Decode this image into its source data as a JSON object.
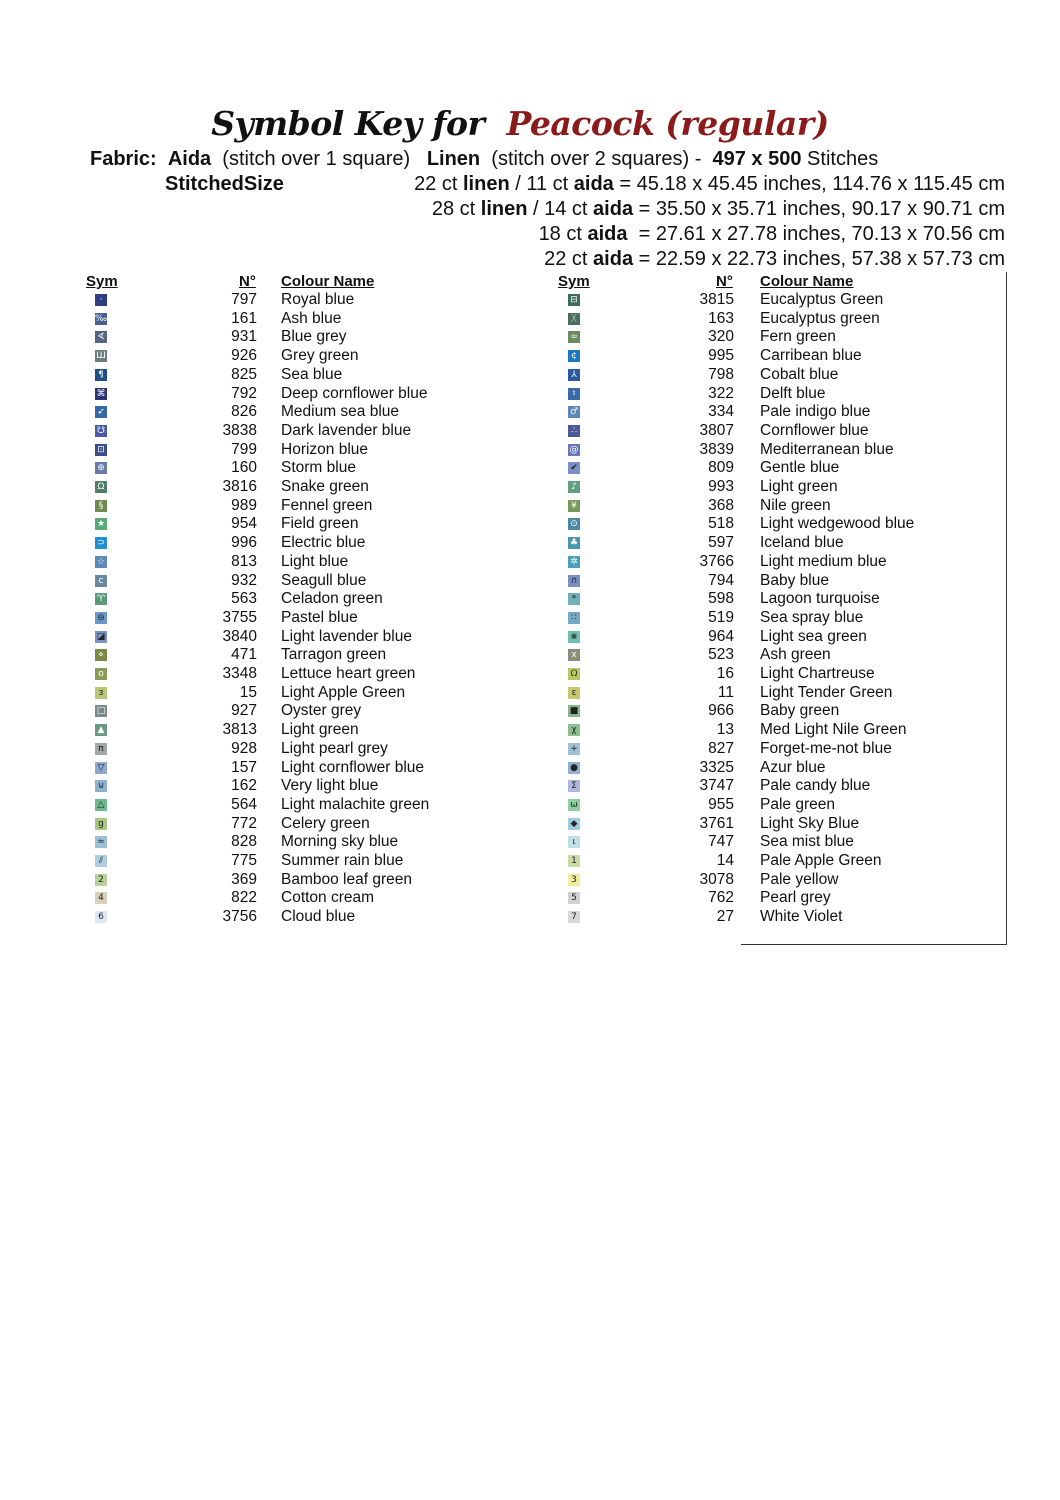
{
  "title": {
    "prefix": "Symbol Key for",
    "name": "Peacock (regular)"
  },
  "fabric": {
    "label": "Fabric:",
    "aida": "Aida",
    "aida_note": "(stitch over 1 square)",
    "linen": "Linen",
    "linen_note": "(stitch over 2 squares) -",
    "w": "497",
    "x": "x",
    "h": "500",
    "unit": "Stitches"
  },
  "stitched": {
    "label": "StitchedSize",
    "lines": [
      {
        "a": "22 ct ",
        "b": "linen",
        "c": " / 11 ct ",
        "d": "aida",
        "e": " = 45.18 x 45.45 inches, 114.76 x 115.45 cm"
      },
      {
        "a": "28 ct ",
        "b": "linen",
        "c": " / 14 ct ",
        "d": "aida",
        "e": " = 35.50 x 35.71 inches, 90.17 x 90.71 cm"
      },
      {
        "a": "",
        "b": "",
        "c": "18 ct ",
        "d": "aida",
        "e": "  = 27.61 x 27.78 inches, 70.13 x 70.56 cm"
      },
      {
        "a": "",
        "b": "",
        "c": "22 ct ",
        "d": "aida",
        "e": " = 22.59 x 22.73 inches, 57.38 x 57.73 cm"
      }
    ]
  },
  "headers": {
    "sym": "Sym",
    "num": "N°",
    "name": "Colour Name"
  },
  "columns": [
    [
      [
        "·",
        "797",
        "Royal blue",
        "#2e3f7f"
      ],
      [
        "‰",
        "161",
        "Ash blue",
        "#4a5e8e"
      ],
      [
        "∢",
        "931",
        "Blue grey",
        "#55667e"
      ],
      [
        "Ш",
        "926",
        "Grey green",
        "#6b7f7a"
      ],
      [
        "¶",
        "825",
        "Sea blue",
        "#1d4f86"
      ],
      [
        "⌘",
        "792",
        "Deep cornflower blue",
        "#2d3577"
      ],
      [
        "➶",
        "826",
        "Medium sea blue",
        "#3567a8"
      ],
      [
        "☋",
        "3838",
        "Dark lavender blue",
        "#4a5aa8"
      ],
      [
        "⊡",
        "799",
        "Horizon blue",
        "#3a4e8a"
      ],
      [
        "⊕",
        "160",
        "Storm blue",
        "#6a7aa8"
      ],
      [
        "Ω",
        "3816",
        "Snake green",
        "#4f7f68"
      ],
      [
        "§",
        "989",
        "Fennel green",
        "#6f8a4f"
      ],
      [
        "★",
        "954",
        "Field green",
        "#5aaa78"
      ],
      [
        "⊃",
        "996",
        "Electric blue",
        "#1f8fd0"
      ],
      [
        "☆",
        "813",
        "Light blue",
        "#5a8ab8"
      ],
      [
        "c",
        "932",
        "Seagull blue",
        "#6a88a0"
      ],
      [
        "♈",
        "563",
        "Celadon green",
        "#5a9a7a"
      ],
      [
        "⊖",
        "3755",
        "Pastel blue",
        "#6a98c8"
      ],
      [
        "◪",
        "3840",
        "Light lavender blue",
        "#7a90c8"
      ],
      [
        "⋄",
        "471",
        "Tarragon green",
        "#7a8a48"
      ],
      [
        "o",
        "3348",
        "Lettuce heart green",
        "#8a9a58"
      ],
      [
        "ɜ",
        "15",
        "Light Apple Green",
        "#b8c878"
      ],
      [
        "□",
        "927",
        "Oyster grey",
        "#7a8a8a"
      ],
      [
        "▲",
        "3813",
        "Light green",
        "#6a9a80"
      ],
      [
        "π",
        "928",
        "Light pearl grey",
        "#a0a8a8"
      ],
      [
        "▽",
        "157",
        "Light cornflower blue",
        "#90a8d0"
      ],
      [
        "⊍",
        "162",
        "Very light blue",
        "#90b0d0"
      ],
      [
        "△",
        "564",
        "Light malachite green",
        "#70b890"
      ],
      [
        "g",
        "772",
        "Celery green",
        "#a8c880"
      ],
      [
        "≈",
        "828",
        "Morning sky blue",
        "#9ac0d8"
      ],
      [
        "⫽",
        "775",
        "Summer rain blue",
        "#b0cce0"
      ],
      [
        "2",
        "369",
        "Bamboo leaf green",
        "#b8d098"
      ],
      [
        "4",
        "822",
        "Cotton cream",
        "#d8d0b8"
      ],
      [
        "6",
        "3756",
        "Cloud blue",
        "#dde8f0"
      ]
    ],
    [
      [
        "⊟",
        "3815",
        "Eucalyptus Green",
        "#3f6a5a"
      ],
      [
        "ᚷ",
        "163",
        "Eucalyptus green",
        "#4a6e5a"
      ],
      [
        "∞",
        "320",
        "Fern green",
        "#6a8a60"
      ],
      [
        "¢",
        "995",
        "Carribean blue",
        "#1a78c0"
      ],
      [
        "⅄",
        "798",
        "Cobalt blue",
        "#2a5aa0"
      ],
      [
        "♮",
        "322",
        "Delft blue",
        "#3a6aa8"
      ],
      [
        "♂",
        "334",
        "Pale indigo blue",
        "#5a88b8"
      ],
      [
        "∴",
        "3807",
        "Cornflower blue",
        "#4a5a98"
      ],
      [
        "@",
        "3839",
        "Mediterranean blue",
        "#6878b8"
      ],
      [
        "✔",
        "809",
        "Gentle blue",
        "#7a90c8"
      ],
      [
        "♪",
        "993",
        "Light green",
        "#60a080"
      ],
      [
        "¥",
        "368",
        "Nile green",
        "#78985a"
      ],
      [
        "⊙",
        "518",
        "Light wedgewood blue",
        "#4a88a8"
      ],
      [
        "♣",
        "597",
        "Iceland blue",
        "#4a98a8"
      ],
      [
        "✲",
        "3766",
        "Light medium blue",
        "#4aa0b8"
      ],
      [
        "∩",
        "794",
        "Baby blue",
        "#7890c0"
      ],
      [
        "*",
        "598",
        "Lagoon turquoise",
        "#70b0b8"
      ],
      [
        "∷",
        "519",
        "Sea spray blue",
        "#78a8c8"
      ],
      [
        "⋇",
        "964",
        "Light sea green",
        "#70c0b0"
      ],
      [
        "x",
        "523",
        "Ash green",
        "#8a9078"
      ],
      [
        "ᘯ",
        "16",
        "Light Chartreuse",
        "#b8c860"
      ],
      [
        "ɛ",
        "11",
        "Light Tender Green",
        "#c8c870"
      ],
      [
        "■",
        "966",
        "Baby green",
        "#88b888"
      ],
      [
        "χ",
        "13",
        "Med Light Nile Green",
        "#90c090"
      ],
      [
        "+",
        "827",
        "Forget-me-not blue",
        "#a0c0d8"
      ],
      [
        "●",
        "3325",
        "Azur blue",
        "#90b0d0"
      ],
      [
        "Σ",
        "3747",
        "Pale candy blue",
        "#b0b8e0"
      ],
      [
        "ω",
        "955",
        "Pale green",
        "#90d0a0"
      ],
      [
        "◆",
        "3761",
        "Light Sky Blue",
        "#a0cce0"
      ],
      [
        "ɩ",
        "747",
        "Sea mist blue",
        "#c0e0e8"
      ],
      [
        "1",
        "14",
        "Pale Apple Green",
        "#c8dca8"
      ],
      [
        "3",
        "3078",
        "Pale yellow",
        "#f0eca0"
      ],
      [
        "5",
        "762",
        "Pearl grey",
        "#d0d0d0"
      ],
      [
        "7",
        "27",
        "White Violet",
        "#d8d8d8"
      ]
    ]
  ]
}
